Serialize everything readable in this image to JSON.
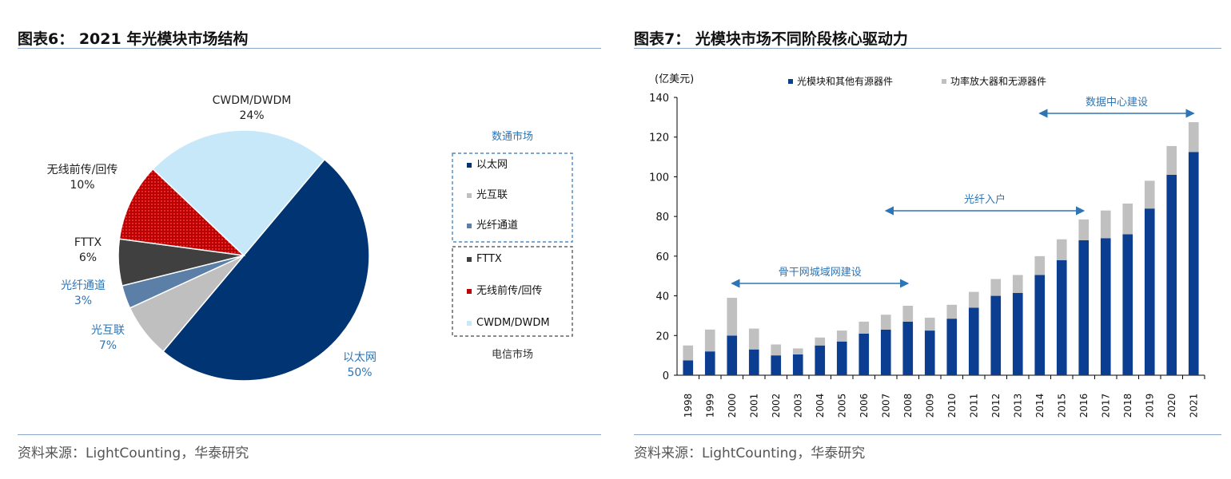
{
  "left": {
    "title": "图表6： 2021 年光模块市场结构",
    "source": "资料来源：LightCounting，华泰研究",
    "group_datacom": "数通市场",
    "group_telecom": "电信市场",
    "colors": {
      "ethernet": "#003473",
      "interconnect": "#bfbfbf",
      "fiber_channel": "#5b7fa6",
      "fttx": "#404040",
      "wireless": "#c00000",
      "cwdm": "#c6e8f8"
    },
    "chart_data": {
      "type": "pie",
      "slices": [
        {
          "label": "以太网",
          "value": 50,
          "value_label": "50%",
          "legend": "以太网"
        },
        {
          "label": "光互联",
          "value": 7,
          "value_label": "7%",
          "legend": "光互联"
        },
        {
          "label": "光纤通道",
          "value": 3,
          "value_label": "3%",
          "legend": "光纤通道"
        },
        {
          "label": "FTTX",
          "value": 6,
          "value_label": "6%",
          "legend": "FTTX"
        },
        {
          "label": "无线前传/回传",
          "value": 10,
          "value_label": "10%",
          "legend": "无线前传/回传"
        },
        {
          "label": "CWDM/DWDM",
          "value": 24,
          "value_label": "24%",
          "legend": "CWDM/DWDM"
        }
      ]
    }
  },
  "right": {
    "title": "图表7： 光模块市场不同阶段核心驱动力",
    "source": "资料来源：LightCounting，华泰研究",
    "colors": {
      "series1": "#0b3d91",
      "series2": "#c0c0c0",
      "annotation": "#2e75b6",
      "axis": "#000000"
    },
    "chart_data": {
      "type": "bar",
      "stacked": true,
      "ylabel": "(亿美元)",
      "ylim": [
        0,
        140
      ],
      "yticks": [
        0,
        20,
        40,
        60,
        80,
        100,
        120,
        140
      ],
      "categories": [
        "1998",
        "1999",
        "2000",
        "2001",
        "2002",
        "2003",
        "2004",
        "2005",
        "2006",
        "2007",
        "2008",
        "2009",
        "2010",
        "2011",
        "2012",
        "2013",
        "2014",
        "2015",
        "2016",
        "2017",
        "2018",
        "2019",
        "2020",
        "2021"
      ],
      "series": [
        {
          "name": "光模块和其他有源器件",
          "values": [
            7.5,
            12,
            20,
            13,
            10,
            10.5,
            15,
            17,
            21,
            23,
            27,
            22.5,
            28.5,
            34,
            40,
            41.5,
            50.5,
            58,
            68,
            69,
            71,
            84,
            101,
            112.5
          ]
        },
        {
          "name": "功率放大器和无源器件",
          "values": [
            7.5,
            11,
            19,
            10.5,
            5.5,
            3,
            4,
            5.5,
            6,
            7.5,
            8,
            6.5,
            7,
            8,
            8.5,
            9,
            9.5,
            10.5,
            10.5,
            14,
            15.5,
            14,
            14.5,
            15
          ]
        }
      ],
      "legend_position": "top",
      "annotations": [
        {
          "text": "骨干网城域网建设",
          "from": "2000",
          "to": "2008"
        },
        {
          "text": "光纤入户",
          "from": "2007",
          "to": "2016"
        },
        {
          "text": "数据中心建设",
          "from": "2014",
          "to": "2021"
        }
      ]
    }
  }
}
